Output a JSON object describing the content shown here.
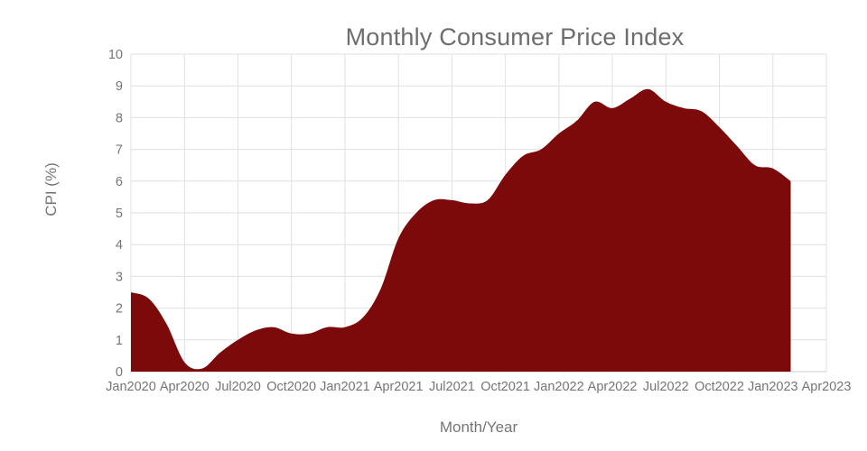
{
  "chart_data": {
    "type": "area",
    "title": "Monthly Consumer Price Index",
    "xlabel": "Month/Year",
    "ylabel": "CPI (%)",
    "ylim": [
      0,
      10
    ],
    "grid": true,
    "legend": "none",
    "fill_color": "#7d0a0a",
    "grid_color": "#e0e0e0",
    "axis_color": "#cccccc",
    "text_color": "#757575",
    "categories": [
      "Jan2020",
      "Feb2020",
      "Mar2020",
      "Apr2020",
      "May2020",
      "Jun2020",
      "Jul2020",
      "Aug2020",
      "Sep2020",
      "Oct2020",
      "Nov2020",
      "Dec2020",
      "Jan2021",
      "Feb2021",
      "Mar2021",
      "Apr2021",
      "May2021",
      "Jun2021",
      "Jul2021",
      "Aug2021",
      "Sep2021",
      "Oct2021",
      "Nov2021",
      "Dec2021",
      "Jan2022",
      "Feb2022",
      "Mar2022",
      "Apr2022",
      "May2022",
      "Jun2022",
      "Jul2022",
      "Aug2022",
      "Sep2022",
      "Oct2022",
      "Nov2022",
      "Dec2022",
      "Jan2023",
      "Feb2023"
    ],
    "values": [
      2.5,
      2.3,
      1.5,
      0.3,
      0.1,
      0.6,
      1.0,
      1.3,
      1.4,
      1.2,
      1.2,
      1.4,
      1.4,
      1.7,
      2.6,
      4.2,
      5.0,
      5.4,
      5.4,
      5.3,
      5.4,
      6.2,
      6.8,
      7.0,
      7.5,
      7.9,
      8.5,
      8.3,
      8.6,
      8.9,
      8.5,
      8.3,
      8.2,
      7.7,
      7.1,
      6.5,
      6.4,
      6.0
    ],
    "x_tick_labels": [
      "Jan2020",
      "Apr2020",
      "Jul2020",
      "Oct2020",
      "Jan2021",
      "Apr2021",
      "Jul2021",
      "Oct2021",
      "Jan2022",
      "Apr2022",
      "Jul2022",
      "Oct2022",
      "Jan2023",
      "Apr2023"
    ],
    "x_tick_step_months": 3,
    "x_axis_total_months": 39,
    "y_ticks": [
      0,
      1,
      2,
      3,
      4,
      5,
      6,
      7,
      8,
      9,
      10
    ]
  }
}
